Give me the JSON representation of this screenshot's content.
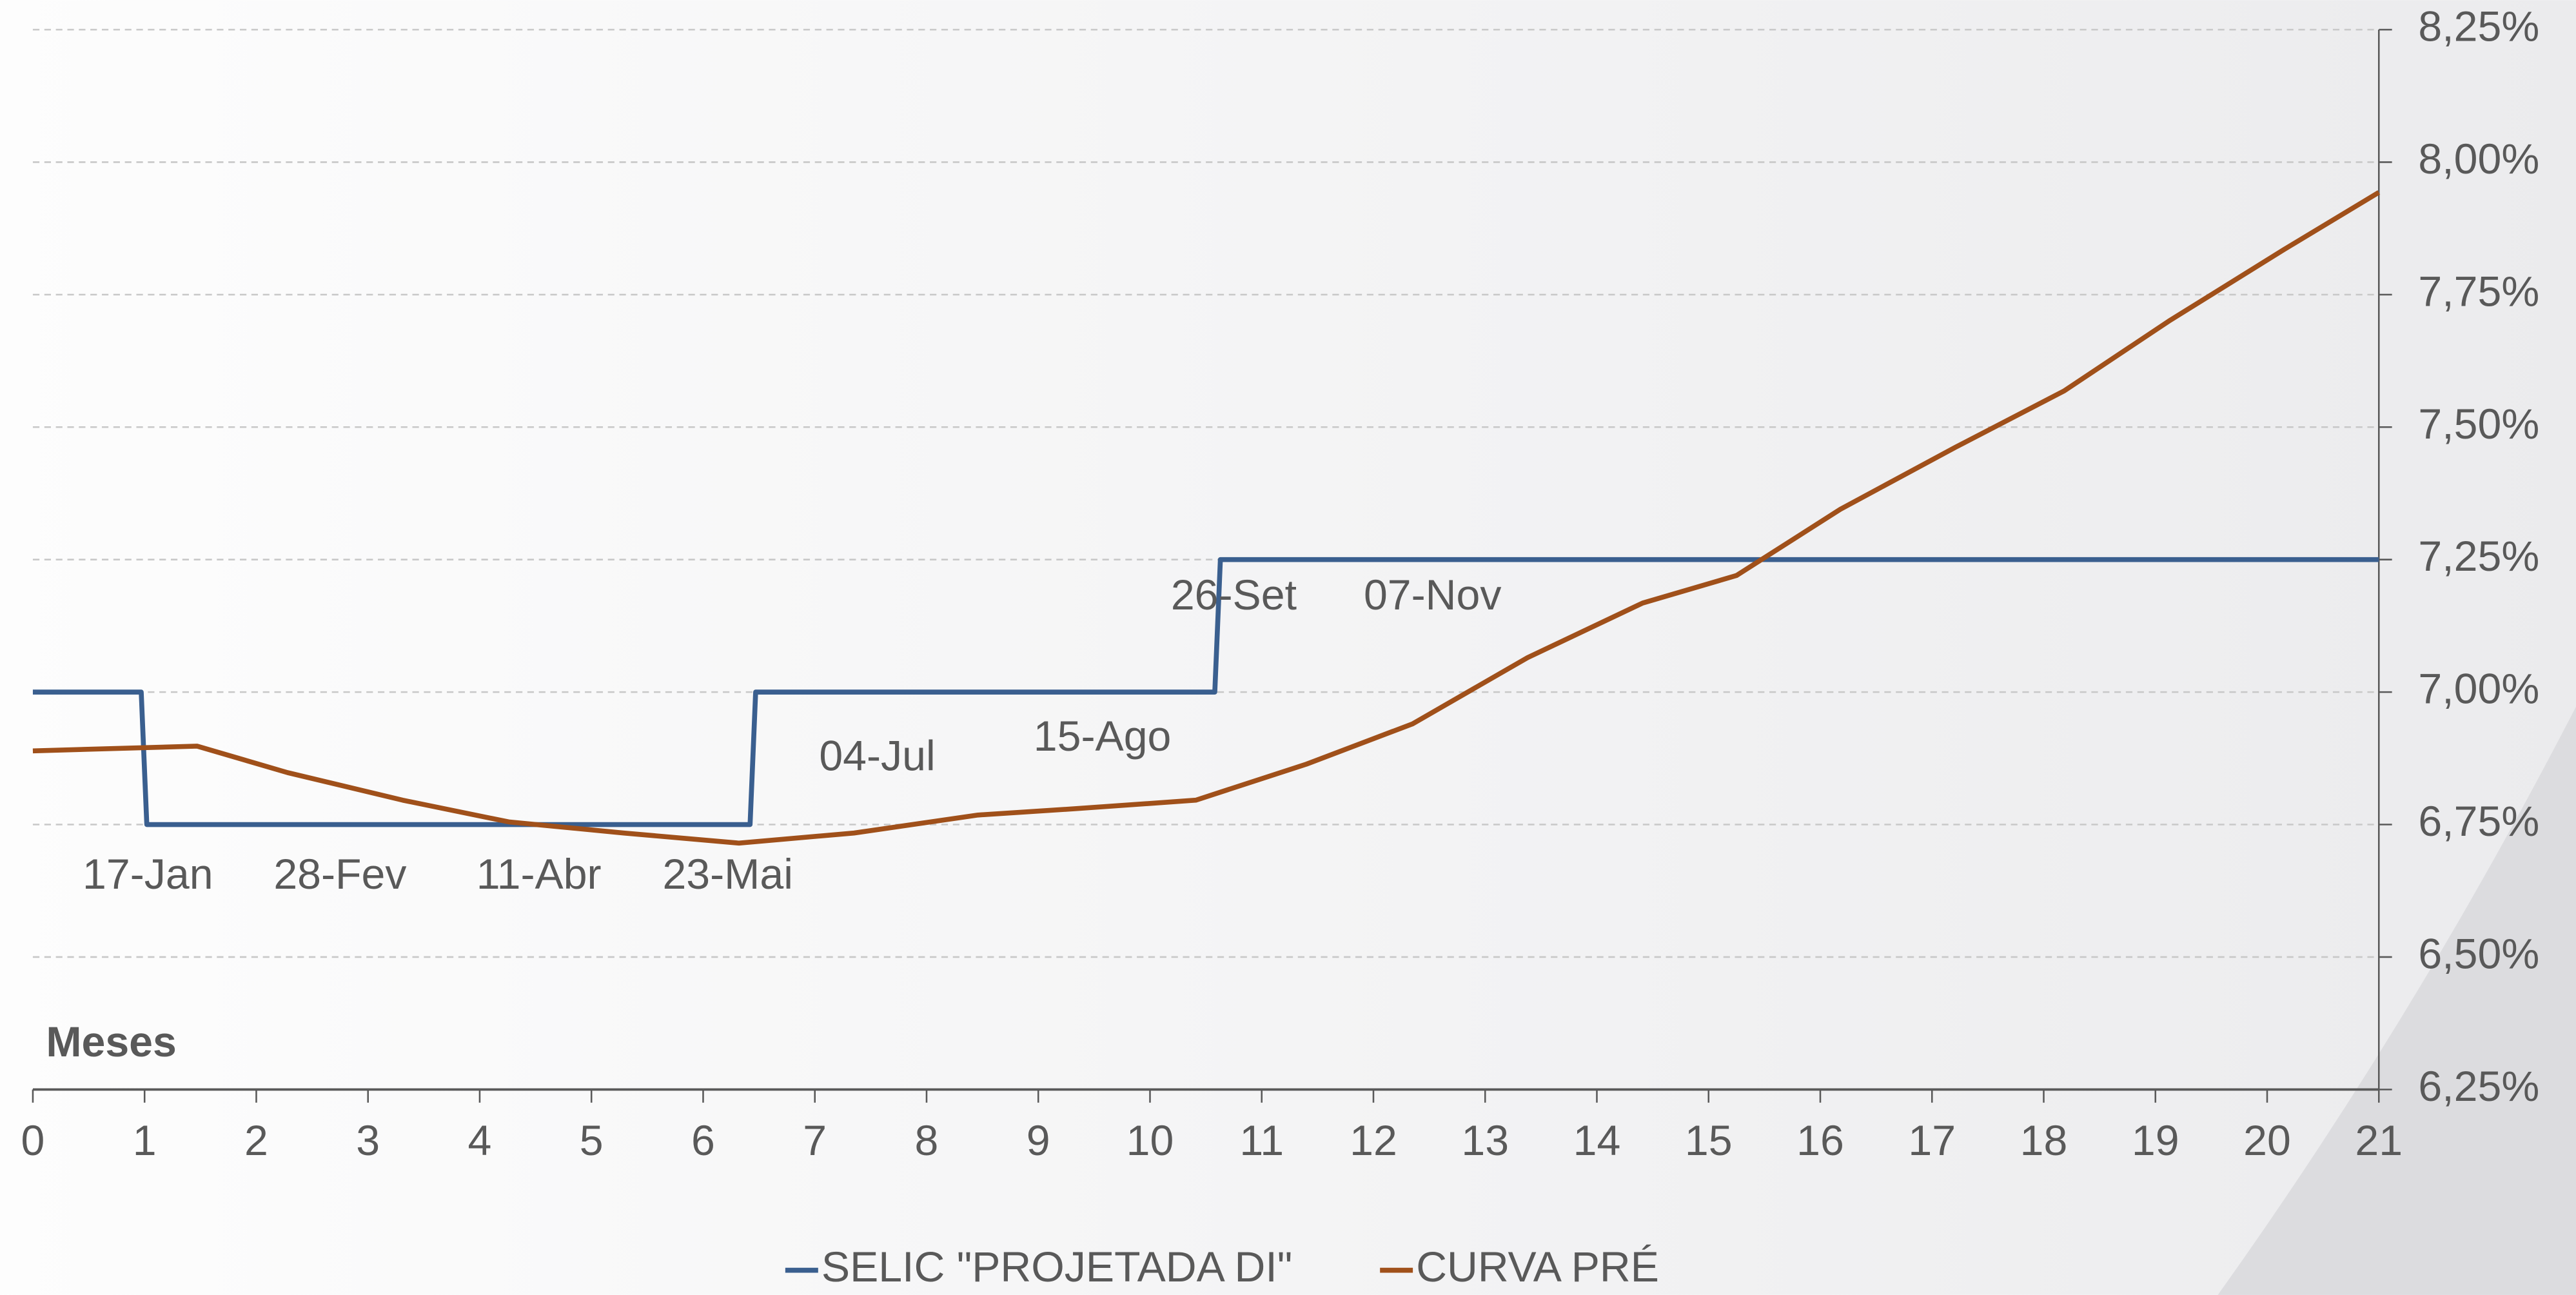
{
  "chart_data": {
    "type": "line",
    "x_label": "Meses",
    "xlim": [
      0,
      21
    ],
    "xticks": [
      0,
      1,
      2,
      3,
      4,
      5,
      6,
      7,
      8,
      9,
      10,
      11,
      12,
      13,
      14,
      15,
      16,
      17,
      18,
      19,
      20,
      21
    ],
    "ylim": [
      6.25,
      8.25
    ],
    "yticks": [
      {
        "value": 6.25,
        "label": "6,25%"
      },
      {
        "value": 6.5,
        "label": "6,50%"
      },
      {
        "value": 6.75,
        "label": "6,75%"
      },
      {
        "value": 7.0,
        "label": "7,00%"
      },
      {
        "value": 7.25,
        "label": "7,25%"
      },
      {
        "value": 7.5,
        "label": "7,50%"
      },
      {
        "value": 7.75,
        "label": "7,75%"
      },
      {
        "value": 8.0,
        "label": "8,00%"
      },
      {
        "value": 8.25,
        "label": "8,25%"
      }
    ],
    "y_axis_side": "right",
    "grid": true,
    "series": [
      {
        "name": "SELIC \"PROJETADA DI\"",
        "color": "#3a5f8f",
        "x": [
          0,
          0.97,
          1.02,
          6.42,
          6.47,
          10.58,
          10.63,
          21
        ],
        "values": [
          7.0,
          7.0,
          6.75,
          6.75,
          7.0,
          7.0,
          7.25,
          7.25
        ]
      },
      {
        "name": "CURVA PRÉ",
        "color": "#a0501a",
        "x": [
          0,
          1.47,
          2.28,
          3.31,
          4.26,
          5.29,
          6.32,
          7.35,
          8.46,
          9.34,
          10.41,
          11.4,
          12.35,
          13.38,
          14.41,
          15.25,
          16.18,
          17.21,
          18.18,
          19.12,
          20.15,
          21
        ],
        "values": [
          6.889,
          6.898,
          6.848,
          6.796,
          6.755,
          6.734,
          6.715,
          6.734,
          6.768,
          6.78,
          6.796,
          6.864,
          6.94,
          7.065,
          7.168,
          7.22,
          7.345,
          7.462,
          7.568,
          7.7,
          7.835,
          7.943
        ]
      }
    ],
    "annotations": [
      "17-Jan",
      "28-Fev",
      "11-Abr",
      "23-Mai",
      "04-Jul",
      "15-Ago",
      "26-Set",
      "07-Nov"
    ]
  }
}
